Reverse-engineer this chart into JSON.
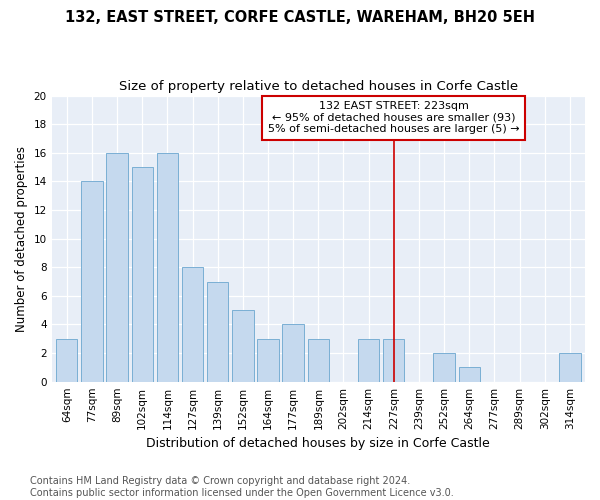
{
  "title": "132, EAST STREET, CORFE CASTLE, WAREHAM, BH20 5EH",
  "subtitle": "Size of property relative to detached houses in Corfe Castle",
  "xlabel": "Distribution of detached houses by size in Corfe Castle",
  "ylabel": "Number of detached properties",
  "categories": [
    "64sqm",
    "77sqm",
    "89sqm",
    "102sqm",
    "114sqm",
    "127sqm",
    "139sqm",
    "152sqm",
    "164sqm",
    "177sqm",
    "189sqm",
    "202sqm",
    "214sqm",
    "227sqm",
    "239sqm",
    "252sqm",
    "264sqm",
    "277sqm",
    "289sqm",
    "302sqm",
    "314sqm"
  ],
  "values": [
    3,
    14,
    16,
    15,
    16,
    8,
    7,
    5,
    3,
    4,
    3,
    0,
    3,
    3,
    0,
    2,
    1,
    0,
    0,
    0,
    2
  ],
  "bar_color": "#c5d9ee",
  "bar_edge_color": "#7aafd4",
  "background_color": "#e8eef7",
  "annotation_text": "132 EAST STREET: 223sqm\n← 95% of detached houses are smaller (93)\n5% of semi-detached houses are larger (5) →",
  "annotation_box_color": "#ffffff",
  "annotation_box_edge_color": "#cc0000",
  "vline_x_index": 13,
  "vline_color": "#cc0000",
  "ylim": [
    0,
    20
  ],
  "yticks": [
    0,
    2,
    4,
    6,
    8,
    10,
    12,
    14,
    16,
    18,
    20
  ],
  "footnote": "Contains HM Land Registry data © Crown copyright and database right 2024.\nContains public sector information licensed under the Open Government Licence v3.0.",
  "title_fontsize": 10.5,
  "subtitle_fontsize": 9.5,
  "xlabel_fontsize": 9,
  "ylabel_fontsize": 8.5,
  "tick_fontsize": 7.5,
  "annotation_fontsize": 8,
  "footnote_fontsize": 7
}
